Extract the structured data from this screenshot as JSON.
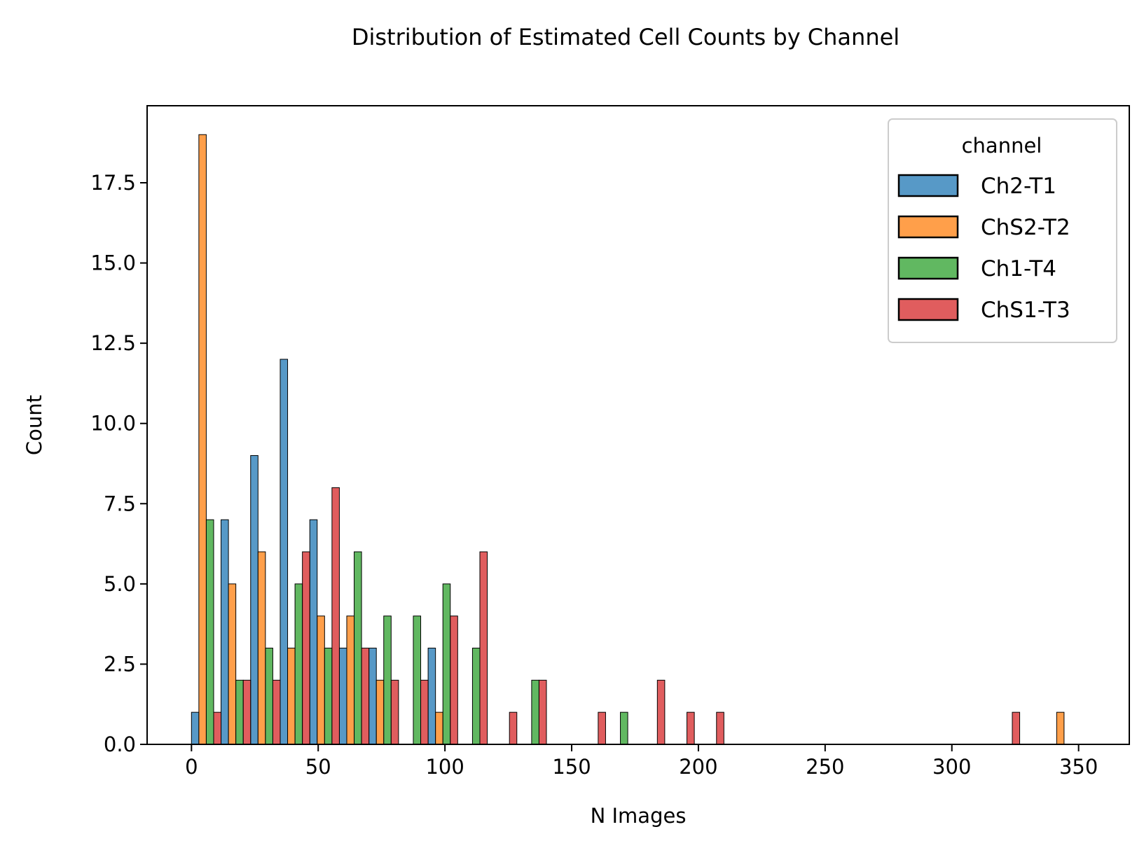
{
  "chart_data": {
    "type": "bar",
    "title": "Distribution of Estimated Cell Counts by Channel",
    "xlabel": "N Images",
    "ylabel": "Count",
    "xlim": [
      -17.5,
      370
    ],
    "ylim": [
      0,
      19.9
    ],
    "xticks": [
      0,
      50,
      100,
      150,
      200,
      250,
      300,
      350
    ],
    "yticks": [
      0.0,
      2.5,
      5.0,
      7.5,
      10.0,
      12.5,
      15.0,
      17.5
    ],
    "xtick_labels": [
      "0",
      "50",
      "100",
      "150",
      "200",
      "250",
      "300",
      "350"
    ],
    "ytick_labels": [
      "0.0",
      "2.5",
      "5.0",
      "7.5",
      "10.0",
      "12.5",
      "15.0",
      "17.5"
    ],
    "bin_start": 0,
    "bin_width": 11.67,
    "legend": {
      "title": "channel",
      "position": "top-right"
    },
    "grid": false,
    "series": [
      {
        "name": "Ch2-T1",
        "color": "#1f77b4",
        "counts": [
          1,
          7,
          9,
          12,
          7,
          3,
          3,
          0,
          3,
          0,
          0,
          0,
          0,
          0,
          0,
          0,
          0,
          0,
          0,
          0,
          0,
          0,
          0,
          0,
          0,
          0,
          0,
          0,
          0,
          0
        ]
      },
      {
        "name": "ChS2-T2",
        "color": "#ff7f0e",
        "counts": [
          19,
          5,
          6,
          3,
          4,
          4,
          2,
          0,
          1,
          0,
          0,
          0,
          0,
          0,
          0,
          0,
          0,
          0,
          0,
          0,
          0,
          0,
          0,
          0,
          0,
          0,
          0,
          0,
          0,
          1
        ]
      },
      {
        "name": "Ch1-T4",
        "color": "#2ca02c",
        "counts": [
          7,
          2,
          3,
          5,
          3,
          6,
          4,
          4,
          5,
          3,
          0,
          2,
          0,
          0,
          1,
          0,
          0,
          0,
          0,
          0,
          0,
          0,
          0,
          0,
          0,
          0,
          0,
          0,
          0,
          0
        ]
      },
      {
        "name": "ChS1-T3",
        "color": "#d62728",
        "counts": [
          1,
          2,
          2,
          6,
          8,
          3,
          2,
          2,
          4,
          6,
          1,
          2,
          0,
          1,
          0,
          2,
          1,
          1,
          0,
          0,
          0,
          0,
          0,
          0,
          0,
          0,
          0,
          1,
          0,
          0
        ]
      }
    ]
  }
}
